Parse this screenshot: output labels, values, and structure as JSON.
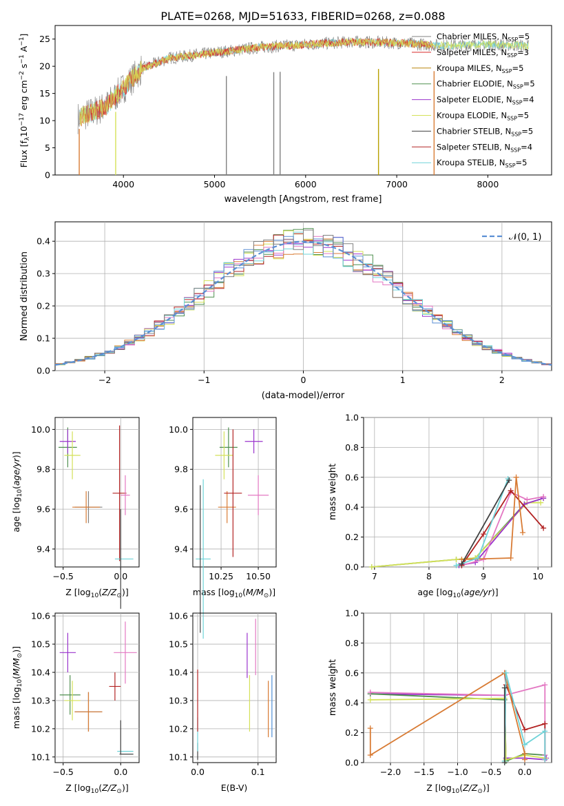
{
  "figure_title": "PLATE=0268, MJD=51633, FIBERID=0268, z=0.088",
  "legend_entries": [
    {
      "name": "Chabrier MILES, N",
      "sub": "SSP",
      "suffix": "=5",
      "color": "#808080"
    },
    {
      "name": "Salpeter MILES, N",
      "sub": "SSP",
      "suffix": "=3",
      "color": "#d62728"
    },
    {
      "name": "Kroupa MILES, N",
      "sub": "SSP",
      "suffix": "=5",
      "color": "#b8860b"
    },
    {
      "name": "Chabrier ELODIE, N",
      "sub": "SSP",
      "suffix": "=5",
      "color": "#4f8f4f"
    },
    {
      "name": "Salpeter ELODIE, N",
      "sub": "SSP",
      "suffix": "=4",
      "color": "#9932cc"
    },
    {
      "name": "Kroupa ELODIE, N",
      "sub": "SSP",
      "suffix": "=5",
      "color": "#d4e157"
    },
    {
      "name": "Chabrier STELIB, N",
      "sub": "SSP",
      "suffix": "=5",
      "color": "#404040"
    },
    {
      "name": "Salpeter STELIB, N",
      "sub": "SSP",
      "suffix": "=4",
      "color": "#b22222"
    },
    {
      "name": "Kroupa STELIB, N",
      "sub": "SSP",
      "suffix": "=5",
      "color": "#6ed3d8"
    }
  ],
  "chart_data": [
    {
      "type": "line",
      "id": "spectrum",
      "xlabel": "wavelength [Angstrom, rest frame]",
      "ylabel": "Flux [f",
      "ylabel_full": "Flux [fλ10⁻¹⁷ erg cm⁻² s⁻¹ A⁻¹]",
      "xlim": [
        3250,
        8700
      ],
      "ylim": [
        0,
        27.5
      ],
      "xticks": [
        "4000",
        "5000",
        "6000",
        "7000",
        "8000"
      ],
      "yticks": [
        "0",
        "5",
        "10",
        "15",
        "20",
        "25"
      ],
      "continuum_x": [
        3500,
        3800,
        4000,
        4200,
        4500,
        5000,
        5500,
        6000,
        6500,
        7000,
        7500,
        8000,
        8450
      ],
      "continuum_y": [
        10.5,
        12.5,
        16,
        19.5,
        21.5,
        22.5,
        23.5,
        24,
        24.5,
        24.3,
        23.8,
        24.0,
        23.8
      ]
    },
    {
      "type": "line",
      "id": "residuals",
      "xlabel": "(data-model)/error",
      "ylabel": "Normed distribution",
      "xlim": [
        -2.5,
        2.5
      ],
      "ylim": [
        0,
        0.46
      ],
      "xticks": [
        "−2",
        "−1",
        "0",
        "1",
        "2"
      ],
      "yticks": [
        "0.0",
        "0.1",
        "0.2",
        "0.3",
        "0.4"
      ],
      "legend": "𝒩(0, 1)",
      "series": [
        {
          "mean": 0,
          "sigma": 1,
          "style": "dashed"
        }
      ]
    },
    {
      "type": "scatter",
      "id": "age-vs-Z",
      "xlabel": "Z [log",
      "ylabel": "age  [log",
      "xlim": [
        -0.57,
        0.16
      ],
      "ylim": [
        9.31,
        10.06
      ],
      "xticks": [
        "−0.5",
        "0.0"
      ],
      "yticks": [
        "9.4",
        "9.6",
        "9.8",
        "10.0"
      ],
      "points": [
        {
          "x": -0.46,
          "y": 9.91,
          "xerr": 0.08,
          "yerr": 0.1,
          "color": "#4f8f4f"
        },
        {
          "x": -0.46,
          "y": 9.94,
          "xerr": 0.07,
          "yerr": 0.06,
          "color": "#9932cc"
        },
        {
          "x": -0.42,
          "y": 9.87,
          "xerr": 0.07,
          "yerr": 0.12,
          "color": "#d4e157"
        },
        {
          "x": -0.28,
          "y": 9.61,
          "xerr": 0.12,
          "yerr": 0.08,
          "color": "#808080"
        },
        {
          "x": -0.3,
          "y": 9.61,
          "xerr": 0.12,
          "yerr": 0.08,
          "color": "#d87b34"
        },
        {
          "x": -0.01,
          "y": 9.68,
          "xerr": 0.06,
          "yerr": 0.34,
          "color": "#b22222"
        },
        {
          "x": 0.04,
          "y": 9.67,
          "xerr": 0.04,
          "yerr": 0.1,
          "color": "#e377c2"
        },
        {
          "x": 0.03,
          "y": 9.35,
          "xerr": 0.08,
          "yerr": 0.0,
          "color": "#6ed3d8"
        },
        {
          "x": 0.0,
          "y": 9.35,
          "xerr": 0.0,
          "yerr": 0.25,
          "color": "#404040"
        }
      ]
    },
    {
      "type": "scatter",
      "id": "age-vs-mass",
      "xlabel": "mass [log",
      "xlim": [
        10.06,
        10.62
      ],
      "ylim": [
        9.31,
        10.06
      ],
      "xticks": [
        "10.25",
        "10.50"
      ],
      "yticks": [
        "9.4",
        "9.6",
        "9.8",
        "10.0"
      ],
      "points": [
        {
          "x": 10.3,
          "y": 9.91,
          "xerr": 0.06,
          "yerr": 0.1,
          "color": "#4f8f4f"
        },
        {
          "x": 10.47,
          "y": 9.94,
          "xerr": 0.06,
          "yerr": 0.06,
          "color": "#9932cc"
        },
        {
          "x": 10.27,
          "y": 9.87,
          "xerr": 0.06,
          "yerr": 0.12,
          "color": "#d4e157"
        },
        {
          "x": 10.29,
          "y": 9.61,
          "xerr": 0.06,
          "yerr": 0.08,
          "color": "#d87b34"
        },
        {
          "x": 10.33,
          "y": 9.68,
          "xerr": 0.06,
          "yerr": 0.32,
          "color": "#b22222"
        },
        {
          "x": 10.5,
          "y": 9.67,
          "xerr": 0.07,
          "yerr": 0.1,
          "color": "#e377c2"
        },
        {
          "x": 10.13,
          "y": 9.35,
          "xerr": 0.05,
          "yerr": 0.4,
          "color": "#6ed3d8"
        },
        {
          "x": 10.11,
          "y": 9.35,
          "xerr": 0.0,
          "yerr": 0.37,
          "color": "#404040"
        }
      ]
    },
    {
      "type": "line",
      "id": "massweight-vs-age",
      "xlabel": "age  [log",
      "ylabel": "mass weight",
      "xlim": [
        6.8,
        10.25
      ],
      "ylim": [
        0,
        1.0
      ],
      "xticks": [
        "7",
        "8",
        "9",
        "10"
      ],
      "yticks": [
        "0.0",
        "0.2",
        "0.4",
        "0.6",
        "0.8",
        "1.0"
      ],
      "series": [
        {
          "color": "#4f8f4f",
          "x": [
            6.95,
            8.5,
            8.85,
            9.75,
            10.1
          ],
          "y": [
            0.0,
            0.05,
            0.06,
            0.42,
            0.46
          ]
        },
        {
          "color": "#d4e157",
          "x": [
            6.95,
            8.5,
            8.85,
            9.8,
            10.05
          ],
          "y": [
            0.0,
            0.05,
            0.06,
            0.43,
            0.43
          ]
        },
        {
          "color": "#9932cc",
          "x": [
            8.55,
            8.85,
            9.75,
            10.1
          ],
          "y": [
            0.01,
            0.03,
            0.42,
            0.46
          ]
        },
        {
          "color": "#e377c2",
          "x": [
            8.6,
            9.0,
            9.5,
            9.8,
            10.1
          ],
          "y": [
            0.01,
            0.05,
            0.5,
            0.45,
            0.47
          ]
        },
        {
          "color": "#b22222",
          "x": [
            8.6,
            9.0,
            9.5,
            10.1
          ],
          "y": [
            0.01,
            0.22,
            0.51,
            0.26
          ]
        },
        {
          "color": "#d87b34",
          "x": [
            8.6,
            9.5,
            9.6,
            9.72
          ],
          "y": [
            0.05,
            0.06,
            0.6,
            0.23
          ]
        },
        {
          "color": "#6ed3d8",
          "x": [
            8.5,
            8.9,
            9.45
          ],
          "y": [
            0.01,
            0.06,
            0.59
          ]
        },
        {
          "color": "#404040",
          "x": [
            8.6,
            9.47
          ],
          "y": [
            0.02,
            0.58
          ]
        }
      ]
    },
    {
      "type": "scatter",
      "id": "mass-vs-Z",
      "xlabel": "Z [log",
      "ylabel": "mass [log",
      "xlim": [
        -0.57,
        0.16
      ],
      "ylim": [
        10.08,
        10.61
      ],
      "xticks": [
        "−0.5",
        "0.0"
      ],
      "yticks": [
        "10.1",
        "10.2",
        "10.3",
        "10.4",
        "10.5",
        "10.6"
      ],
      "points": [
        {
          "x": -0.46,
          "y": 10.47,
          "xerr": 0.07,
          "yerr": 0.07,
          "color": "#9932cc"
        },
        {
          "x": -0.44,
          "y": 10.32,
          "xerr": 0.09,
          "yerr": 0.07,
          "color": "#4f8f4f"
        },
        {
          "x": -0.42,
          "y": 10.3,
          "xerr": 0.07,
          "yerr": 0.07,
          "color": "#d4e157"
        },
        {
          "x": -0.28,
          "y": 10.26,
          "xerr": 0.12,
          "yerr": 0.07,
          "color": "#808080"
        },
        {
          "x": -0.28,
          "y": 10.26,
          "xerr": 0.12,
          "yerr": 0.07,
          "color": "#d87b34"
        },
        {
          "x": -0.05,
          "y": 10.35,
          "xerr": 0.05,
          "yerr": 0.05,
          "color": "#b22222"
        },
        {
          "x": 0.04,
          "y": 10.47,
          "xerr": 0.1,
          "yerr": 0.11,
          "color": "#e377c2"
        },
        {
          "x": 0.04,
          "y": 10.12,
          "xerr": 0.07,
          "yerr": 0.0,
          "color": "#6ed3d8"
        },
        {
          "x": 0.05,
          "y": 10.11,
          "xerr": 0.06,
          "yerr": 0.0,
          "color": "#404040"
        },
        {
          "x": 0.0,
          "y": 10.17,
          "xerr": 0.0,
          "yerr": 0.06,
          "color": "#404040"
        }
      ]
    },
    {
      "type": "scatter",
      "id": "mass-vs-EBV",
      "xlabel": "E(B-V)",
      "xlim": [
        -0.008,
        0.13
      ],
      "ylim": [
        10.08,
        10.61
      ],
      "xticks": [
        "0.0",
        "0.1"
      ],
      "yticks": [
        "10.1",
        "10.2",
        "10.3",
        "10.4",
        "10.5",
        "10.6"
      ],
      "points": [
        {
          "x": 0.0,
          "y": 10.12,
          "xerr": 0.0,
          "yerr": 0.03,
          "color": "#404040"
        },
        {
          "x": 0.0,
          "y": 10.18,
          "xerr": 0.0,
          "yerr": 0.06,
          "color": "#6ed3d8"
        },
        {
          "x": 0.0,
          "y": 10.3,
          "xerr": 0.0,
          "yerr": 0.11,
          "color": "#b22222"
        },
        {
          "x": 0.082,
          "y": 10.46,
          "xerr": 0.0,
          "yerr": 0.08,
          "color": "#9932cc"
        },
        {
          "x": 0.086,
          "y": 10.29,
          "xerr": 0.0,
          "yerr": 0.1,
          "color": "#d4e157"
        },
        {
          "x": 0.096,
          "y": 10.49,
          "xerr": 0.0,
          "yerr": 0.1,
          "color": "#e377c2"
        },
        {
          "x": 0.117,
          "y": 10.27,
          "xerr": 0.0,
          "yerr": 0.1,
          "color": "#d87b34"
        },
        {
          "x": 0.123,
          "y": 10.28,
          "xerr": 0.0,
          "yerr": 0.11,
          "color": "#4f8fd4"
        }
      ]
    },
    {
      "type": "line",
      "id": "massweight-vs-Z",
      "xlabel": "Z [log",
      "ylabel": "mass weight",
      "xlim": [
        -2.4,
        0.4
      ],
      "ylim": [
        0,
        1.0
      ],
      "xticks": [
        "−2.0",
        "−1.5",
        "−1.0",
        "−0.5",
        "0.0"
      ],
      "yticks": [
        "0.0",
        "0.2",
        "0.4",
        "0.6",
        "0.8",
        "1.0"
      ],
      "series": [
        {
          "color": "#9932cc",
          "x": [
            -2.3,
            -0.3,
            -0.28,
            0.0,
            0.3,
            0.32
          ],
          "y": [
            0.46,
            0.45,
            0.03,
            0.03,
            0.02,
            0.03
          ]
        },
        {
          "color": "#4f8f4f",
          "x": [
            -2.3,
            -0.3,
            -0.28,
            0.0,
            0.3
          ],
          "y": [
            0.46,
            0.42,
            0.01,
            0.06,
            0.05
          ]
        },
        {
          "color": "#d4e157",
          "x": [
            -2.3,
            -0.3,
            -0.28,
            0.0,
            0.3
          ],
          "y": [
            0.42,
            0.43,
            0.02,
            0.05,
            0.03
          ]
        },
        {
          "color": "#e377c2",
          "x": [
            -2.3,
            -0.3,
            0.3,
            0.3
          ],
          "y": [
            0.47,
            0.45,
            0.52,
            0.05
          ]
        },
        {
          "color": "#b22222",
          "x": [
            -0.3,
            -0.28,
            0.0,
            0.3,
            0.3
          ],
          "y": [
            0.6,
            0.52,
            0.22,
            0.26,
            0.02
          ]
        },
        {
          "color": "#d87b34",
          "x": [
            -2.3,
            -2.3,
            -0.3,
            0.0,
            0.0
          ],
          "y": [
            0.23,
            0.05,
            0.6,
            0.06,
            0.02
          ]
        },
        {
          "color": "#6ed3d8",
          "x": [
            -0.3,
            -0.28,
            0.0,
            0.3,
            0.3
          ],
          "y": [
            0.01,
            0.6,
            0.12,
            0.21,
            0.02
          ]
        },
        {
          "color": "#404040",
          "x": [
            -0.3,
            -0.3
          ],
          "y": [
            0.0,
            0.5
          ]
        }
      ]
    }
  ]
}
